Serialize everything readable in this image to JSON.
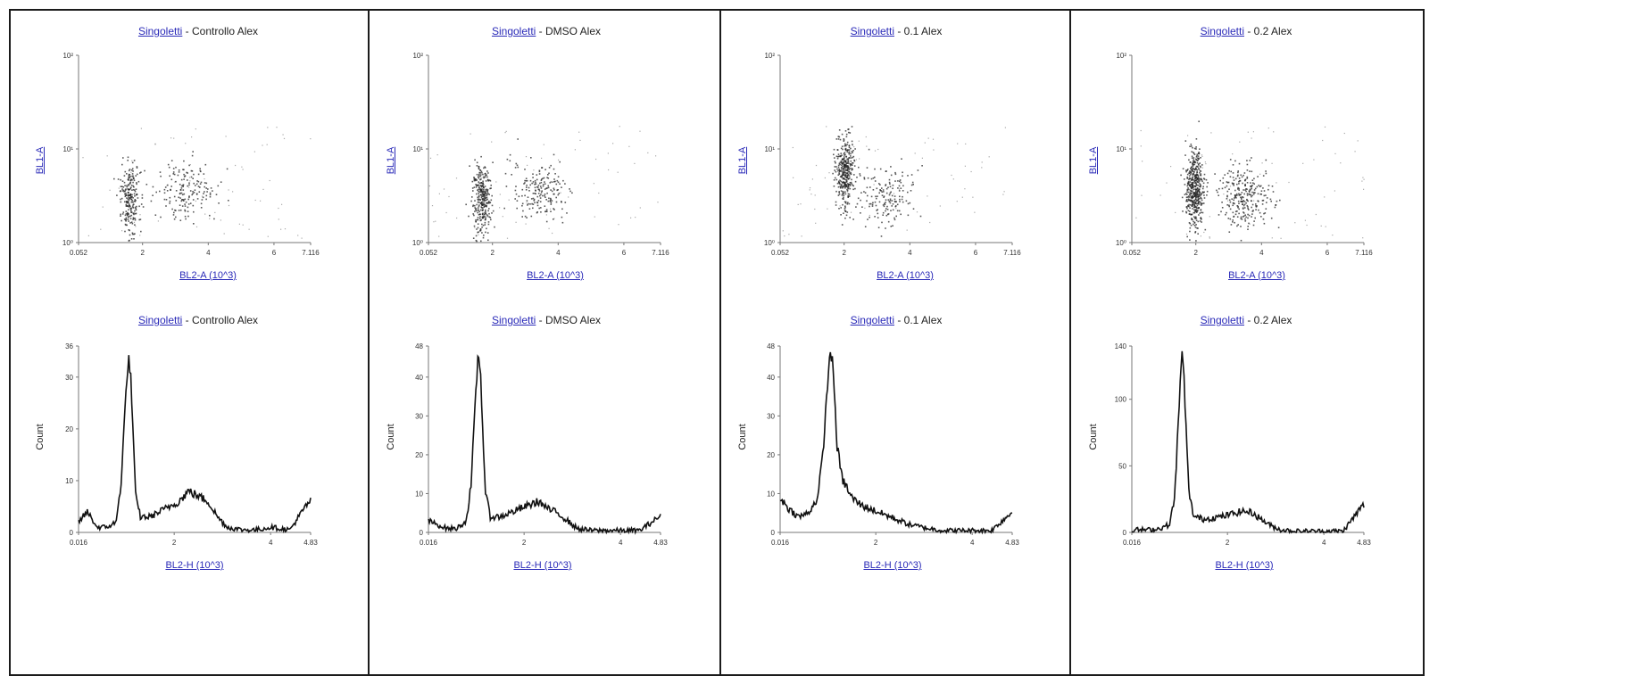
{
  "panels": [
    {
      "scatter_title": {
        "gate": "Singoletti",
        "sample": " - Controllo Alex"
      },
      "hist_title": {
        "gate": "Singoletti",
        "sample": " - Controllo Alex"
      }
    },
    {
      "scatter_title": {
        "gate": "Singoletti",
        "sample": " - DMSO Alex"
      },
      "hist_title": {
        "gate": "Singoletti",
        "sample": " - DMSO Alex"
      }
    },
    {
      "scatter_title": {
        "gate": "Singoletti",
        "sample": " - 0.1 Alex"
      },
      "hist_title": {
        "gate": "Singoletti",
        "sample": " - 0.1 Alex"
      }
    },
    {
      "scatter_title": {
        "gate": "Singoletti",
        "sample": " - 0.2 Alex"
      },
      "hist_title": {
        "gate": "Singoletti",
        "sample": " - 0.2 Alex"
      }
    }
  ],
  "chart_data": [
    {
      "type": "scatter",
      "title": "Singoletti - Controllo Alex",
      "xlabel": "BL2-A (10^3)",
      "ylabel": "BL1-A",
      "xlim": [
        0.052,
        7.116
      ],
      "x_ticks": [
        "0.052",
        "2",
        "4",
        "6",
        "7.116"
      ],
      "y_ticks": [
        "10⁰",
        "10¹",
        "10²"
      ],
      "y_scale": "log",
      "populations": [
        {
          "name": "",
          "x_center": 1.6,
          "y_log_center": 0.35,
          "count": 230
        },
        {
          "name": "",
          "x_center": 3.3,
          "y_log_center": 0.55,
          "count": 170
        }
      ]
    },
    {
      "type": "scatter",
      "title": "Singoletti - DMSO Alex",
      "xlabel": "BL2-A (10^3)",
      "ylabel": "BL1-A",
      "xlim": [
        0.052,
        7.116
      ],
      "x_ticks": [
        "0.052",
        "2",
        "4",
        "6",
        "7.116"
      ],
      "y_ticks": [
        "10⁰",
        "10¹",
        "10²"
      ],
      "y_scale": "log",
      "populations": [
        {
          "name": "",
          "x_center": 1.65,
          "y_log_center": 0.35,
          "count": 300
        },
        {
          "name": "",
          "x_center": 3.4,
          "y_log_center": 0.55,
          "count": 190
        }
      ]
    },
    {
      "type": "scatter",
      "title": "Singoletti - 0.1 Alex",
      "xlabel": "BL2-A (10^3)",
      "ylabel": "BL1-A",
      "xlim": [
        0.052,
        7.116
      ],
      "x_ticks": [
        "0.052",
        "2",
        "4",
        "6",
        "7.116"
      ],
      "y_ticks": [
        "10⁰",
        "10¹",
        "10²"
      ],
      "y_scale": "log",
      "populations": [
        {
          "name": "",
          "x_center": 2.0,
          "y_log_center": 0.65,
          "count": 360
        },
        {
          "name": "",
          "x_center": 3.3,
          "y_log_center": 0.5,
          "count": 160
        }
      ]
    },
    {
      "type": "scatter",
      "title": "Singoletti - 0.2 Alex",
      "xlabel": "BL2-A (10^3)",
      "ylabel": "BL1-A",
      "xlim": [
        0.052,
        7.116
      ],
      "x_ticks": [
        "0.052",
        "2",
        "4",
        "6",
        "7.116"
      ],
      "y_ticks": [
        "10⁰",
        "10¹",
        "10²"
      ],
      "y_scale": "log",
      "populations": [
        {
          "name": "",
          "x_center": 1.95,
          "y_log_center": 0.45,
          "count": 460
        },
        {
          "name": "",
          "x_center": 3.5,
          "y_log_center": 0.5,
          "count": 270
        }
      ]
    },
    {
      "type": "line",
      "title": "Singoletti - Controllo Alex",
      "xlabel": "BL2-H (10^3)",
      "ylabel": "Count",
      "xlim": [
        0.016,
        4.83
      ],
      "ylim": [
        0,
        36
      ],
      "x_ticks": [
        "0.016",
        "2",
        "4",
        "4.83"
      ],
      "y_ticks": [
        "0",
        "10",
        "20",
        "30",
        "36"
      ],
      "x": [
        0.016,
        0.2,
        0.4,
        0.6,
        0.8,
        0.9,
        1.0,
        1.05,
        1.1,
        1.15,
        1.2,
        1.3,
        1.5,
        1.7,
        1.9,
        2.1,
        2.3,
        2.5,
        2.7,
        2.9,
        3.1,
        3.4,
        3.7,
        4.0,
        4.4,
        4.8
      ],
      "y": [
        2,
        4,
        1,
        1,
        2,
        10,
        27,
        34,
        30,
        18,
        7,
        3,
        3,
        4,
        5,
        6,
        8,
        7,
        6,
        3,
        1,
        0.5,
        0.5,
        1,
        0.5,
        6
      ]
    },
    {
      "type": "line",
      "title": "Singoletti - DMSO Alex",
      "xlabel": "BL2-H (10^3)",
      "ylabel": "Count",
      "xlim": [
        0.016,
        4.83
      ],
      "ylim": [
        0,
        48
      ],
      "x_ticks": [
        "0.016",
        "2",
        "4",
        "4.83"
      ],
      "y_ticks": [
        "0",
        "10",
        "20",
        "30",
        "40",
        "48"
      ],
      "x": [
        0.016,
        0.2,
        0.4,
        0.6,
        0.8,
        0.9,
        1.0,
        1.05,
        1.1,
        1.15,
        1.2,
        1.3,
        1.5,
        1.7,
        1.9,
        2.1,
        2.3,
        2.5,
        2.7,
        2.9,
        3.1,
        3.4,
        3.7,
        4.0,
        4.4,
        4.8
      ],
      "y": [
        3,
        2,
        1,
        1,
        3,
        12,
        36,
        47,
        40,
        24,
        10,
        4,
        4,
        5,
        6,
        7,
        8,
        6,
        5,
        3,
        1,
        0.5,
        0.5,
        0.5,
        0.5,
        4
      ]
    },
    {
      "type": "line",
      "title": "Singoletti - 0.1 Alex",
      "xlabel": "BL2-H (10^3)",
      "ylabel": "Count",
      "xlim": [
        0.016,
        4.83
      ],
      "ylim": [
        0,
        48
      ],
      "x_ticks": [
        "0.016",
        "2",
        "4",
        "4.83"
      ],
      "y_ticks": [
        "0",
        "10",
        "20",
        "30",
        "40",
        "48"
      ],
      "x": [
        0.016,
        0.2,
        0.4,
        0.6,
        0.8,
        0.9,
        1.0,
        1.05,
        1.1,
        1.15,
        1.2,
        1.3,
        1.5,
        1.7,
        1.9,
        2.1,
        2.3,
        2.5,
        2.7,
        2.9,
        3.1,
        3.4,
        3.7,
        4.0,
        4.4,
        4.8
      ],
      "y": [
        9,
        6,
        4,
        5,
        9,
        20,
        38,
        47,
        44,
        34,
        22,
        14,
        9,
        7,
        6,
        5,
        4,
        3,
        2,
        1.5,
        1,
        0.5,
        0.5,
        0.5,
        0.5,
        5
      ]
    },
    {
      "type": "line",
      "title": "Singoletti - 0.2 Alex",
      "xlabel": "BL2-H (10^3)",
      "ylabel": "Count",
      "xlim": [
        0.016,
        4.83
      ],
      "ylim": [
        0,
        140
      ],
      "x_ticks": [
        "0.016",
        "2",
        "4",
        "4.83"
      ],
      "y_ticks": [
        "0",
        "50",
        "100",
        "140"
      ],
      "x": [
        0.016,
        0.2,
        0.4,
        0.6,
        0.8,
        0.9,
        1.0,
        1.05,
        1.1,
        1.15,
        1.2,
        1.3,
        1.5,
        1.7,
        1.9,
        2.1,
        2.3,
        2.5,
        2.7,
        2.9,
        3.1,
        3.4,
        3.7,
        4.0,
        4.4,
        4.8
      ],
      "y": [
        2,
        2,
        2,
        3,
        6,
        25,
        95,
        138,
        115,
        70,
        30,
        12,
        10,
        11,
        12,
        14,
        16,
        15,
        10,
        5,
        2,
        1,
        1,
        1,
        1,
        20
      ]
    }
  ]
}
